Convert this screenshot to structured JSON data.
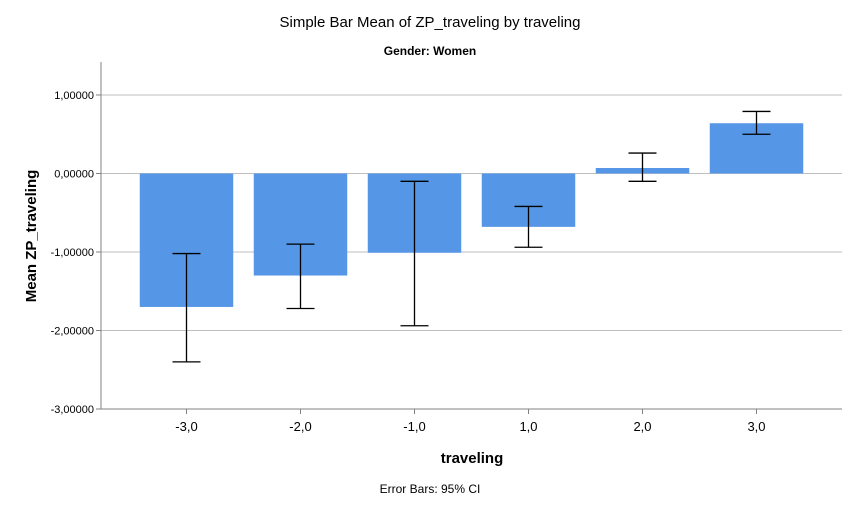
{
  "chart_data": {
    "type": "bar",
    "title": "Simple Bar Mean of ZP_traveling by traveling",
    "subtitle": "Gender: Women",
    "xlabel": "traveling",
    "ylabel": "Mean ZP_traveling",
    "footnote": "Error Bars: 95% CI",
    "categories": [
      "-3,0",
      "-2,0",
      "-1,0",
      "1,0",
      "2,0",
      "3,0"
    ],
    "values": [
      -1.7,
      -1.3,
      -1.01,
      -0.68,
      0.07,
      0.64
    ],
    "ci_low": [
      -2.4,
      -1.72,
      -1.94,
      -0.94,
      -0.1,
      0.5
    ],
    "ci_high": [
      -1.02,
      -0.9,
      -0.1,
      -0.42,
      0.26,
      0.79
    ],
    "ylim": [
      -3.0,
      1.42
    ],
    "yticks": [
      1.0,
      0.0,
      -1.0,
      -2.0,
      -3.0
    ],
    "ytick_labels": [
      "1,00000",
      "0,00000",
      "-1,00000",
      "-2,00000",
      "-3,00000"
    ],
    "gridlines": true,
    "bar_color": "#5597e6",
    "grid_color": "#bfbfbf",
    "axis_color": "#808080"
  }
}
